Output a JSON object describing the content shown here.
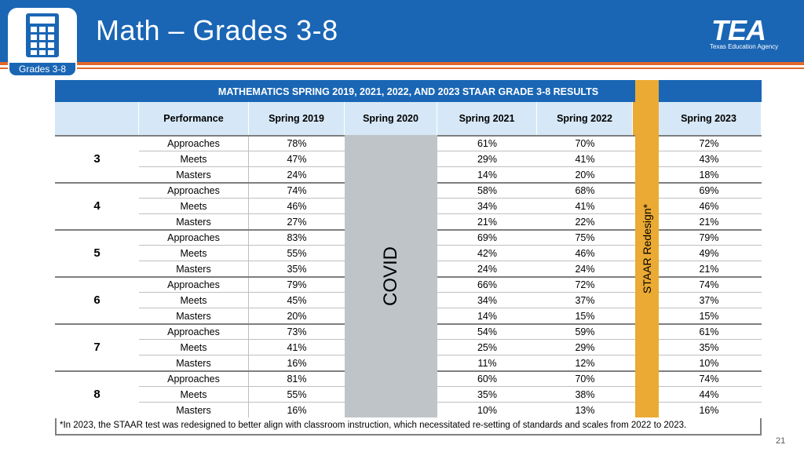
{
  "slide": {
    "title": "Math – Grades 3-8",
    "badge_label": "Grades 3-8",
    "badge_icon": "calculator-icon",
    "logo_text": "TEA",
    "logo_sub": "Texas Education Agency",
    "page_number": "21"
  },
  "colors": {
    "header_blue": "#1a66b5",
    "accent_orange": "#e0692a",
    "covid_gray": "#bfc4c8",
    "redesign_gold": "#ebaa33",
    "header_row_light_blue": "#d6e8f7"
  },
  "table": {
    "title": "MATHEMATICS SPRING 2019, 2021, 2022, AND 2023 STAAR GRADE 3-8 RESULTS",
    "headers": [
      "Performance",
      "Spring 2019",
      "Spring 2020",
      "Spring 2021",
      "Spring 2022",
      "Spring 2023"
    ],
    "covid_label": "COVID",
    "redesign_label": "STAAR Redesign*",
    "grades": [
      {
        "grade": "3",
        "rows": [
          {
            "perf": "Approaches",
            "s2019": "78%",
            "s2021": "61%",
            "s2022": "70%",
            "s2023": "72%"
          },
          {
            "perf": "Meets",
            "s2019": "47%",
            "s2021": "29%",
            "s2022": "41%",
            "s2023": "43%"
          },
          {
            "perf": "Masters",
            "s2019": "24%",
            "s2021": "14%",
            "s2022": "20%",
            "s2023": "18%"
          }
        ]
      },
      {
        "grade": "4",
        "rows": [
          {
            "perf": "Approaches",
            "s2019": "74%",
            "s2021": "58%",
            "s2022": "68%",
            "s2023": "69%"
          },
          {
            "perf": "Meets",
            "s2019": "46%",
            "s2021": "34%",
            "s2022": "41%",
            "s2023": "46%"
          },
          {
            "perf": "Masters",
            "s2019": "27%",
            "s2021": "21%",
            "s2022": "22%",
            "s2023": "21%"
          }
        ]
      },
      {
        "grade": "5",
        "rows": [
          {
            "perf": "Approaches",
            "s2019": "83%",
            "s2021": "69%",
            "s2022": "75%",
            "s2023": "79%"
          },
          {
            "perf": "Meets",
            "s2019": "55%",
            "s2021": "42%",
            "s2022": "46%",
            "s2023": "49%"
          },
          {
            "perf": "Masters",
            "s2019": "35%",
            "s2021": "24%",
            "s2022": "24%",
            "s2023": "21%"
          }
        ]
      },
      {
        "grade": "6",
        "rows": [
          {
            "perf": "Approaches",
            "s2019": "79%",
            "s2021": "66%",
            "s2022": "72%",
            "s2023": "74%"
          },
          {
            "perf": "Meets",
            "s2019": "45%",
            "s2021": "34%",
            "s2022": "37%",
            "s2023": "37%"
          },
          {
            "perf": "Masters",
            "s2019": "20%",
            "s2021": "14%",
            "s2022": "15%",
            "s2023": "15%"
          }
        ]
      },
      {
        "grade": "7",
        "rows": [
          {
            "perf": "Approaches",
            "s2019": "73%",
            "s2021": "54%",
            "s2022": "59%",
            "s2023": "61%"
          },
          {
            "perf": "Meets",
            "s2019": "41%",
            "s2021": "25%",
            "s2022": "29%",
            "s2023": "35%"
          },
          {
            "perf": "Masters",
            "s2019": "16%",
            "s2021": "11%",
            "s2022": "12%",
            "s2023": "10%"
          }
        ]
      },
      {
        "grade": "8",
        "rows": [
          {
            "perf": "Approaches",
            "s2019": "81%",
            "s2021": "60%",
            "s2022": "70%",
            "s2023": "74%"
          },
          {
            "perf": "Meets",
            "s2019": "55%",
            "s2021": "35%",
            "s2022": "38%",
            "s2023": "44%"
          },
          {
            "perf": "Masters",
            "s2019": "16%",
            "s2021": "10%",
            "s2022": "13%",
            "s2023": "16%"
          }
        ]
      }
    ],
    "footnote": "*In 2023, the STAAR test was redesigned to better align with classroom instruction, which necessitated re-setting of standards and scales from 2022 to 2023."
  }
}
